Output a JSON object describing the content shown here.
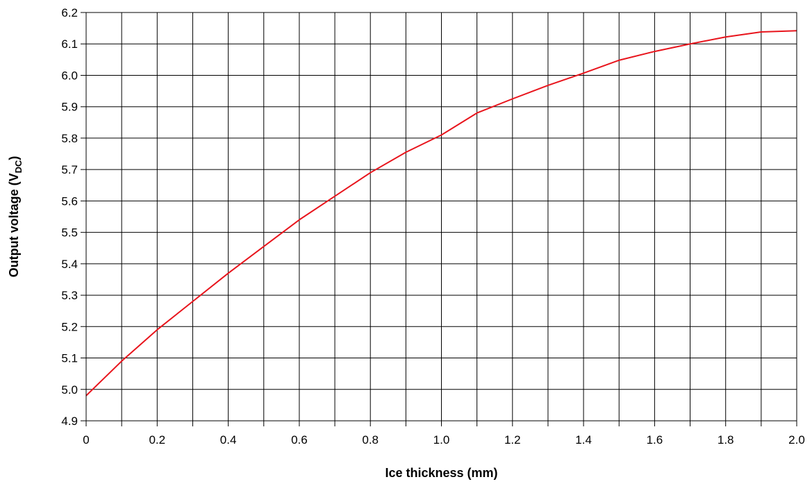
{
  "chart_data": {
    "type": "line",
    "title": "",
    "xlabel": "Ice thickness (mm)",
    "ylabel_main": "Output voltage (V",
    "ylabel_sub": "DC",
    "ylabel_close": ")",
    "xlim": [
      0,
      2.0
    ],
    "ylim": [
      4.9,
      6.2
    ],
    "x_ticks": [
      "0",
      "0.2",
      "0.4",
      "0.6",
      "0.8",
      "1.0",
      "1.2",
      "1.4",
      "1.6",
      "1.8",
      "2.0"
    ],
    "y_ticks": [
      "4.9",
      "5.0",
      "5.1",
      "5.2",
      "5.3",
      "5.4",
      "5.5",
      "5.6",
      "5.7",
      "5.8",
      "5.9",
      "6.0",
      "6.1",
      "6.2"
    ],
    "grid": true,
    "grid_x_step": 0.1,
    "grid_y_step": 0.1,
    "legend": "none",
    "colors": {
      "line": "#e8141c",
      "grid": "#000000",
      "axis": "#000000"
    },
    "series": [
      {
        "x": [
          0,
          0.1,
          0.2,
          0.3,
          0.4,
          0.5,
          0.6,
          0.7,
          0.8,
          0.9,
          1.0,
          1.1,
          1.2,
          1.3,
          1.4,
          1.5,
          1.6,
          1.7,
          1.8,
          1.9,
          2.0
        ],
        "values": [
          4.98,
          5.09,
          5.19,
          5.28,
          5.37,
          5.455,
          5.54,
          5.615,
          5.69,
          5.755,
          5.81,
          5.88,
          5.925,
          5.968,
          6.007,
          6.048,
          6.076,
          6.1,
          6.122,
          6.138,
          6.142
        ]
      }
    ]
  }
}
